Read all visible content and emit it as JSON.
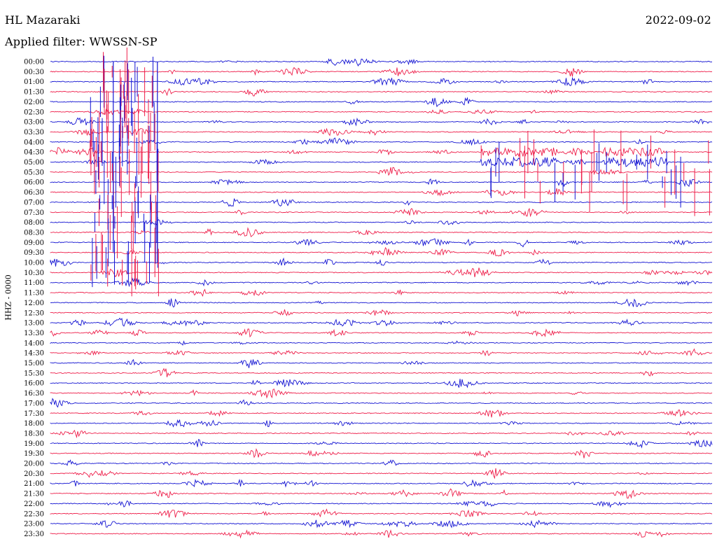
{
  "header": {
    "station": "HL Mazaraki",
    "date": "2022-09-02",
    "filter_text": "Applied filter: WWSSN-SP"
  },
  "channel_label": "HHZ - 0000",
  "colors": {
    "even_trace": "#1414d2",
    "odd_trace": "#ee1e4a"
  },
  "chart_data": {
    "type": "line",
    "title": "HL Mazaraki",
    "ylabel": "HHZ - 0000",
    "trace_rows": [
      "00:00",
      "00:30",
      "01:00",
      "01:30",
      "02:00",
      "02:30",
      "03:00",
      "03:30",
      "04:00",
      "04:30",
      "05:00",
      "05:30",
      "06:00",
      "06:30",
      "07:00",
      "07:30",
      "08:00",
      "08:30",
      "09:00",
      "09:30",
      "10:00",
      "10:30",
      "11:00",
      "11:30",
      "12:00",
      "12:30",
      "13:00",
      "13:30",
      "14:00",
      "14:30",
      "15:00",
      "15:30",
      "16:00",
      "16:30",
      "17:00",
      "17:30",
      "18:00",
      "18:30",
      "19:00",
      "19:30",
      "20:00",
      "20:30",
      "21:00",
      "21:30",
      "22:00",
      "22:30",
      "23:00",
      "23:30"
    ],
    "row_duration_minutes": 30,
    "x_axis": "minutes after row start (0-30)",
    "trace_colors": [
      "blue",
      "red"
    ],
    "notable_events": [
      {
        "rows": [
          "00:30",
          "01:00",
          "01:30",
          "02:00",
          "02:30",
          "03:00",
          "03:30",
          "04:00",
          "04:30",
          "05:00",
          "05:30",
          "06:00",
          "06:30",
          "07:00",
          "07:30",
          "08:00",
          "08:30",
          "09:00",
          "09:30",
          "10:00",
          "10:30"
        ],
        "minute_start": 1.8,
        "minute_end": 5.0,
        "description": "large spikes spanning many rows"
      },
      {
        "rows": [
          "04:30",
          "05:00",
          "05:30",
          "06:00",
          "06:30"
        ],
        "minute_start": 19.5,
        "minute_end": 30.0,
        "description": "dense high-amplitude bursts"
      }
    ]
  }
}
